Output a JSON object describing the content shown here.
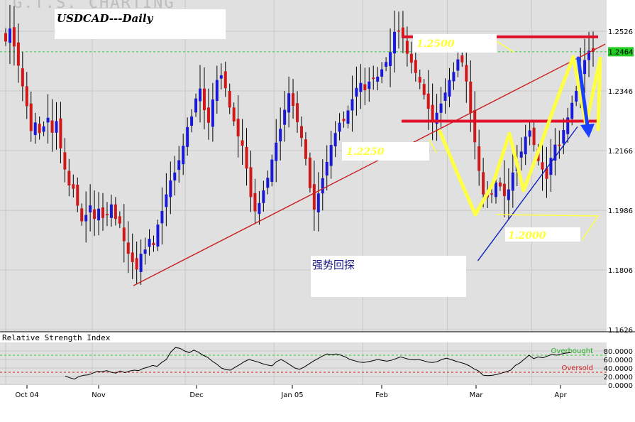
{
  "watermark": "G.T.S. CHARTING",
  "title": "USDCAD---Daily",
  "colors": {
    "up": "#1a1ad6",
    "down": "#d01818",
    "resistance": "#e0102a",
    "trend": "#c82020",
    "support_trend": "#1020c0",
    "pattern": "#ffff44",
    "arrow": "#1a40ff",
    "current_price_box": "#22cc22",
    "panel_bg": "#e0e0e0",
    "grid": "#c8c8c8"
  },
  "annotations": {
    "level_high": "1.2500",
    "level_mid": "1.2250",
    "level_low": "1.2000",
    "note": "强势回探"
  },
  "chart_data": [
    {
      "type": "candlestick",
      "title": "USDCAD---Daily",
      "ylim": [
        1.162,
        1.262
      ],
      "y_ticks": [
        "1.2526",
        "1.2346",
        "1.2166",
        "1.1986",
        "1.1806",
        "1.1626"
      ],
      "current_price": "1.2464",
      "x_ticks": [
        "Oct 04",
        "Nov",
        "Dec",
        "Jan 05",
        "Feb",
        "Mar",
        "Apr"
      ],
      "resistance_levels": [
        1.2509,
        1.2255
      ],
      "trendline_long": [
        [
          0,
          1.1759
        ],
        [
          138,
          1.2487
        ]
      ],
      "trendline_support": [
        [
          105,
          1.1834
        ],
        [
          133,
          1.2238
        ]
      ],
      "closes": [
        1.2495,
        1.2534,
        1.248,
        1.2422,
        1.236,
        1.23,
        1.2225,
        1.2251,
        1.2219,
        1.2239,
        1.2265,
        1.222,
        1.2255,
        1.2173,
        1.2109,
        1.2061,
        1.2051,
        1.2,
        1.1953,
        1.1972,
        1.2001,
        1.196,
        1.1991,
        1.1963,
        1.1971,
        1.2004,
        1.196,
        1.1946,
        1.1893,
        1.1855,
        1.183,
        1.1808,
        1.1855,
        1.1868,
        1.19,
        1.1881,
        1.1943,
        1.1984,
        1.2034,
        1.2076,
        1.21,
        1.2137,
        1.2181,
        1.2237,
        1.2269,
        1.2323,
        1.2353,
        1.2288,
        1.225,
        1.232,
        1.2379,
        1.2393,
        1.2354,
        1.2296,
        1.2254,
        1.2209,
        1.2181,
        1.2112,
        1.2026,
        1.1983,
        1.2008,
        1.2046,
        1.2084,
        1.2139,
        1.219,
        1.2232,
        1.2289,
        1.2339,
        1.2301,
        1.2252,
        1.2204,
        1.2141,
        1.2053,
        1.1988,
        1.2037,
        1.2083,
        1.2132,
        1.2183,
        1.2219,
        1.225,
        1.2255,
        1.2287,
        1.2321,
        1.2355,
        1.237,
        1.2348,
        1.2374,
        1.2382,
        1.2389,
        1.2411,
        1.2433,
        1.2463,
        1.2524,
        1.2525,
        1.2505,
        1.2458,
        1.2431,
        1.24,
        1.2371,
        1.2334,
        1.2292,
        1.2255,
        1.228,
        1.2308,
        1.2341,
        1.2379,
        1.2403,
        1.2441,
        1.2432,
        1.2374,
        1.228,
        1.2191,
        1.2105,
        1.2034,
        1.2025,
        1.2034,
        1.207,
        1.2058,
        1.2029,
        1.2049,
        1.21,
        1.2133,
        1.2163,
        1.2208,
        1.2227,
        1.2183,
        1.2135,
        1.2109,
        1.2081,
        1.2144,
        1.2184,
        1.218,
        1.2228,
        1.2266,
        1.231,
        1.2346,
        1.2405,
        1.2439,
        1.2467,
        1.2464
      ]
    },
    {
      "type": "line",
      "title": "Relative Strength Index",
      "ylim": [
        0,
        100
      ],
      "y_ticks": [
        "80.0000",
        "60.0000",
        "40.0000",
        "20.0000",
        "0.0000"
      ],
      "levels": [
        {
          "name": "Overbought",
          "value": 70
        },
        {
          "name": "Oversold",
          "value": 30
        }
      ],
      "values": [
        21,
        17,
        14,
        20,
        23,
        24,
        28,
        32,
        31,
        34,
        30,
        28,
        33,
        29,
        33,
        35,
        34,
        39,
        42,
        46,
        44,
        53,
        60,
        78,
        88,
        86,
        80,
        76,
        82,
        77,
        70,
        65,
        56,
        49,
        40,
        36,
        35,
        42,
        48,
        55,
        60,
        57,
        54,
        50,
        47,
        45,
        55,
        60,
        54,
        47,
        40,
        37,
        42,
        49,
        56,
        62,
        68,
        73,
        71,
        73,
        70,
        66,
        60,
        57,
        54,
        53,
        55,
        57,
        60,
        58,
        56,
        58,
        62,
        66,
        63,
        60,
        59,
        60,
        57,
        54,
        53,
        55,
        60,
        63,
        60,
        56,
        53,
        50,
        45,
        38,
        33,
        23,
        22,
        23,
        25,
        28,
        31,
        35,
        46,
        52,
        61,
        70,
        62,
        66,
        64,
        68,
        72,
        70,
        73,
        75,
        76
      ]
    }
  ]
}
